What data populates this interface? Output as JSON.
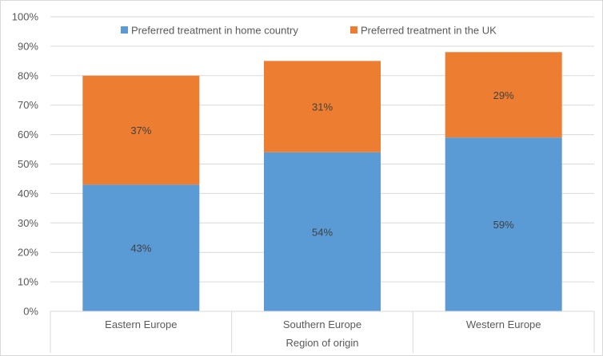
{
  "chart_data": {
    "type": "bar",
    "stacked": true,
    "categories": [
      "Eastern Europe",
      "Southern Europe",
      "Western Europe"
    ],
    "series": [
      {
        "name": "Preferred treatment in home country",
        "values": [
          43,
          54,
          59
        ],
        "labels": [
          "43%",
          "54%",
          "59%"
        ],
        "color": "#5b9bd5"
      },
      {
        "name": "Preferred treatment in the UK",
        "values": [
          37,
          31,
          29
        ],
        "labels": [
          "37%",
          "31%",
          "29%"
        ],
        "color": "#ed7d31"
      }
    ],
    "yticks": [
      "0%",
      "10%",
      "20%",
      "30%",
      "40%",
      "50%",
      "60%",
      "70%",
      "80%",
      "90%",
      "100%"
    ],
    "ylim": [
      0,
      100
    ],
    "xlabel": "Region of origin",
    "ylabel": "",
    "title": "",
    "grid": true,
    "legend": "top"
  }
}
